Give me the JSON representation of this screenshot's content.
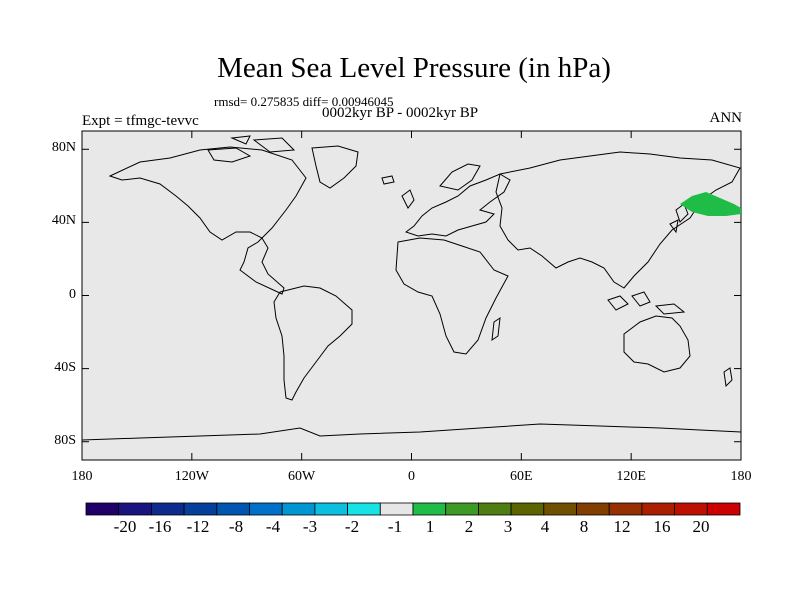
{
  "title": "Mean Sea Level Pressure (in hPa)",
  "stats": "rmsd= 0.275835 diff= 0.00946045",
  "period": "0002kyr BP - 0002kyr BP",
  "expt": "Expt = tfmgc-tevvc",
  "season": "ANN",
  "map": {
    "lat_ticks": [
      "80N",
      "40N",
      "0",
      "40S",
      "80S"
    ],
    "lon_ticks": [
      "180",
      "120W",
      "60W",
      "0",
      "60E",
      "120E",
      "180"
    ],
    "ocean_color": "#e8e8e8",
    "anomaly_region": {
      "label": "North Pacific positive anomaly",
      "color": "#1fbc47",
      "lon_range": [
        148,
        180
      ],
      "lat_range": [
        42,
        52
      ]
    }
  },
  "colorbar": {
    "labels": [
      "-20",
      "-16",
      "-12",
      "-8",
      "-4",
      "-3",
      "-2",
      "-1",
      "1",
      "2",
      "3",
      "4",
      "8",
      "12",
      "16",
      "20"
    ],
    "colors": [
      "#200068",
      "#1a1480",
      "#0d2b8c",
      "#063f9b",
      "#0055b0",
      "#0070c8",
      "#0096d4",
      "#0cbfe0",
      "#17e2e4",
      "#e6e6e6",
      "#1fbc47",
      "#3d9a25",
      "#4f7d12",
      "#5c6400",
      "#6f5000",
      "#823d00",
      "#973000",
      "#aa1f00",
      "#bd1000",
      "#cc0000"
    ]
  }
}
